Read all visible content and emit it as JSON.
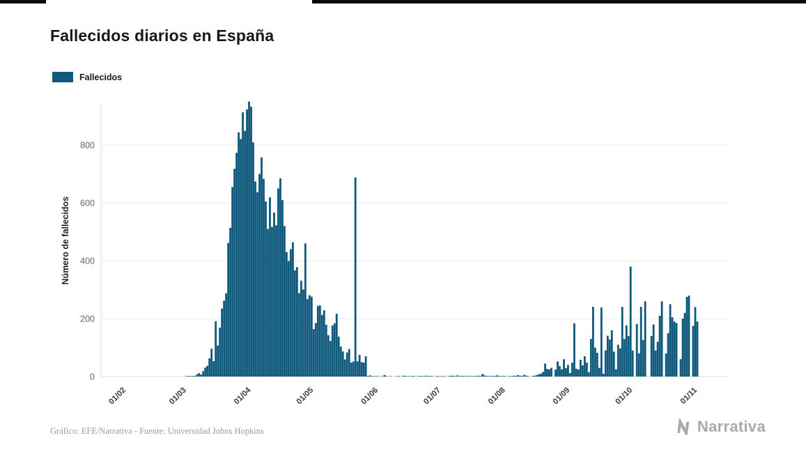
{
  "page": {
    "title": "Fallecidos diarios en España",
    "legend": {
      "label": "Fallecidos",
      "color": "#0e587c"
    },
    "footer": {
      "credit": "Gráfico: EFE/Narrativa - Fuente: Universidad Johns Hopkins",
      "brand": "Narrativa"
    }
  },
  "chart_data": {
    "type": "bar",
    "title": "Fallecidos diarios en España",
    "xlabel": "",
    "ylabel": "Número de fallecidos",
    "ylim": [
      0,
      950
    ],
    "y_ticks": [
      0,
      200,
      400,
      600,
      800
    ],
    "grid": true,
    "legend_position": "top-left",
    "bar_color": "#0e587c",
    "start_date": "01/02/2020",
    "frequency": "daily",
    "x_tick_labels": [
      "01/02",
      "01/03",
      "01/04",
      "01/05",
      "01/06",
      "01/07",
      "01/08",
      "01/09",
      "01/10",
      "01/11"
    ],
    "x_tick_indices": [
      0,
      29,
      60,
      90,
      121,
      151,
      182,
      213,
      243,
      274
    ],
    "series": [
      {
        "name": "Fallecidos",
        "color": "#0e587c",
        "values": [
          0,
          0,
          0,
          0,
          0,
          0,
          0,
          0,
          0,
          0,
          0,
          0,
          0,
          0,
          0,
          0,
          0,
          0,
          0,
          0,
          0,
          0,
          0,
          0,
          0,
          0,
          0,
          0,
          0,
          0,
          0,
          1,
          2,
          1,
          2,
          2,
          7,
          12,
          7,
          19,
          31,
          37,
          63,
          96,
          53,
          191,
          107,
          169,
          235,
          262,
          288,
          462,
          514,
          655,
          718,
          773,
          844,
          821,
          913,
          849,
          923,
          950,
          932,
          809,
          674,
          637,
          700,
          757,
          683,
          605,
          510,
          619,
          517,
          567,
          523,
          650,
          685,
          610,
          520,
          430,
          399,
          440,
          464,
          367,
          378,
          288,
          331,
          301,
          460,
          268,
          281,
          276,
          164,
          185,
          244,
          246,
          213,
          229,
          179,
          143,
          123,
          176,
          184,
          217,
          138,
          104,
          87,
          59,
          83,
          95,
          48,
          52,
          688,
          53,
          75,
          50,
          48,
          70,
          2,
          4,
          1,
          1,
          1,
          1,
          0,
          1,
          5,
          1,
          0,
          1,
          0,
          0,
          1,
          1,
          0,
          3,
          2,
          1,
          1,
          1,
          2,
          0,
          1,
          2,
          1,
          1,
          3,
          1,
          2,
          1,
          0,
          2,
          1,
          1,
          1,
          1,
          0,
          2,
          3,
          2,
          1,
          4,
          1,
          2,
          2,
          1,
          2,
          1,
          1,
          2,
          1,
          3,
          2,
          9,
          4,
          2,
          1,
          2,
          2,
          2,
          4,
          2,
          1,
          2,
          1,
          0,
          2,
          1,
          3,
          2,
          5,
          3,
          2,
          6,
          3,
          1,
          0,
          2,
          3,
          5,
          8,
          10,
          16,
          45,
          26,
          25,
          30,
          0,
          24,
          52,
          36,
          25,
          60,
          29,
          40,
          12,
          48,
          184,
          27,
          24,
          58,
          39,
          70,
          48,
          15,
          130,
          241,
          100,
          82,
          30,
          239,
          10,
          90,
          141,
          128,
          160,
          86,
          25,
          110,
          97,
          241,
          130,
          177,
          140,
          380,
          90,
          0,
          182,
          80,
          241,
          126,
          260,
          0,
          0,
          140,
          180,
          90,
          120,
          210,
          260,
          0,
          80,
          150,
          250,
          205,
          190,
          185,
          0,
          60,
          200,
          220,
          275,
          280,
          0,
          175,
          240,
          190
        ]
      }
    ]
  }
}
